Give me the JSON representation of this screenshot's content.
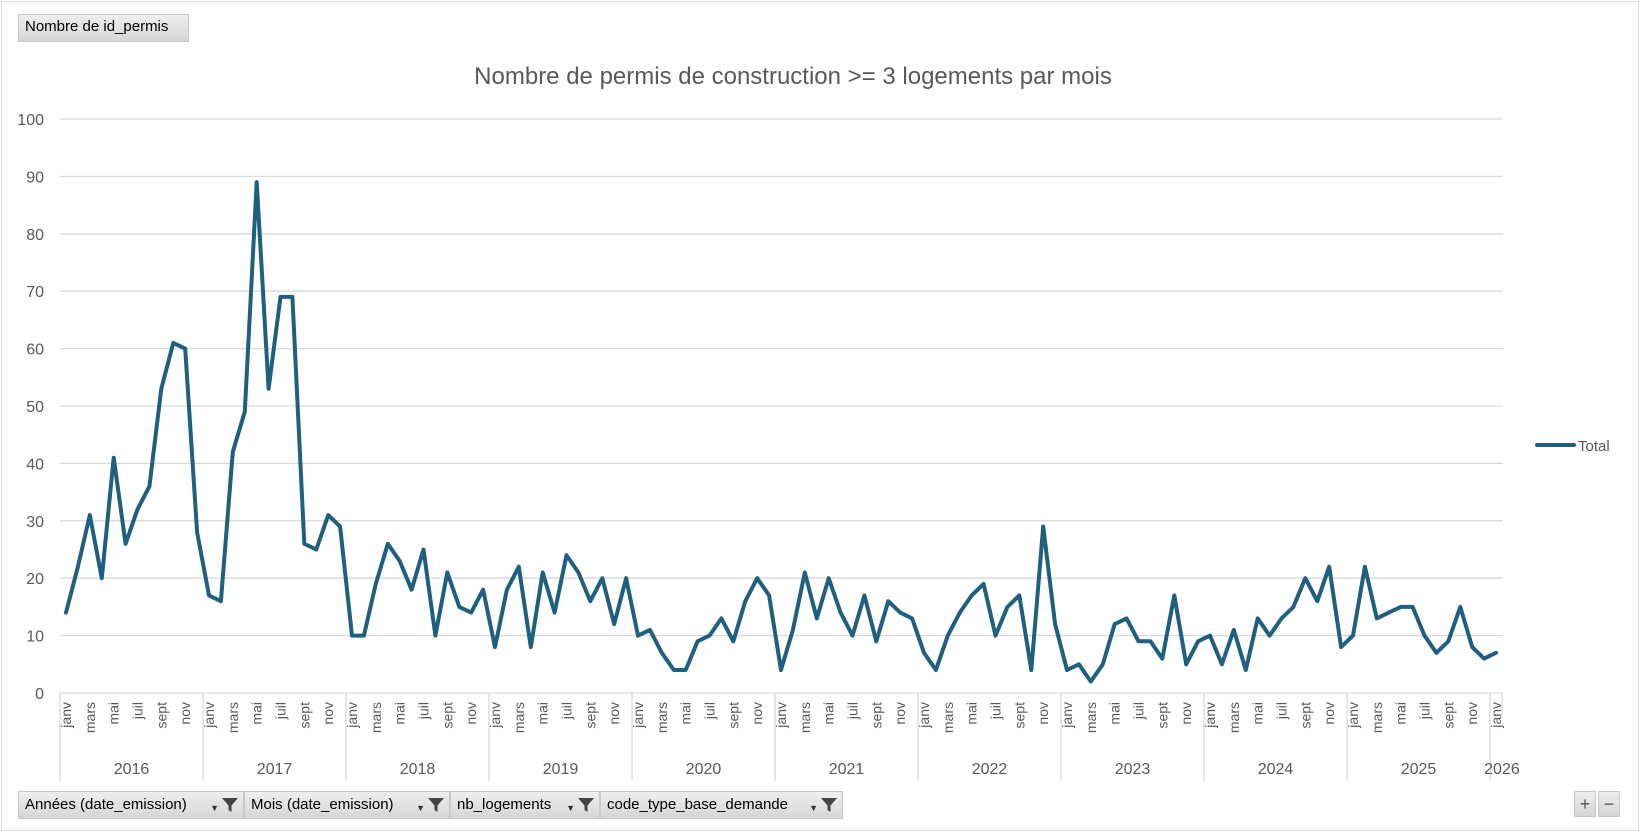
{
  "value_field": {
    "label": "Nombre de id_permis"
  },
  "axis_fields": [
    {
      "label": "Années (date_emission)"
    },
    {
      "label": "Mois (date_emission)"
    },
    {
      "label": "nb_logements"
    },
    {
      "label": "code_type_base_demande"
    }
  ],
  "zoom": {
    "plus": "+",
    "minus": "−"
  },
  "icons": {
    "filter": "filter-icon",
    "dropdown": "chevron-down-icon"
  },
  "colors": {
    "series": "#1f5f7f",
    "grid": "#d9d9d9",
    "text": "#595959"
  },
  "chart_data": {
    "type": "line",
    "title": "Nombre de permis de construction >= 3 logements par mois",
    "xlabel": "",
    "ylabel": "",
    "ylim": [
      0,
      100
    ],
    "yticks": [
      0,
      10,
      20,
      30,
      40,
      50,
      60,
      70,
      80,
      90,
      100
    ],
    "grid": true,
    "legend_position": "right",
    "month_tick_labels": [
      "janv",
      "mars",
      "mai",
      "juil",
      "sept",
      "nov"
    ],
    "years": [
      {
        "label": "2016",
        "months": 12
      },
      {
        "label": "2017",
        "months": 12
      },
      {
        "label": "2018",
        "months": 12
      },
      {
        "label": "2019",
        "months": 12
      },
      {
        "label": "2020",
        "months": 12
      },
      {
        "label": "2021",
        "months": 12
      },
      {
        "label": "2022",
        "months": 12
      },
      {
        "label": "2023",
        "months": 12
      },
      {
        "label": "2024",
        "months": 12
      },
      {
        "label": "2025",
        "months": 12
      },
      {
        "label": "2026",
        "months": 1
      }
    ],
    "series": [
      {
        "name": "Total",
        "values": [
          14,
          22,
          31,
          20,
          41,
          26,
          32,
          36,
          53,
          61,
          60,
          28,
          17,
          16,
          42,
          49,
          89,
          53,
          69,
          69,
          26,
          25,
          31,
          29,
          10,
          10,
          19,
          26,
          23,
          18,
          25,
          10,
          21,
          15,
          14,
          18,
          8,
          18,
          22,
          8,
          21,
          14,
          24,
          21,
          16,
          20,
          12,
          20,
          10,
          11,
          7,
          4,
          4,
          9,
          10,
          13,
          9,
          16,
          20,
          17,
          4,
          11,
          21,
          13,
          20,
          14,
          10,
          17,
          9,
          16,
          14,
          13,
          7,
          4,
          10,
          14,
          17,
          19,
          10,
          15,
          17,
          4,
          29,
          12,
          4,
          5,
          2,
          5,
          12,
          13,
          9,
          9,
          6,
          17,
          5,
          9,
          10,
          5,
          11,
          4,
          13,
          10,
          13,
          15,
          20,
          16,
          22,
          8,
          10,
          22,
          13,
          14,
          15,
          15,
          10,
          7,
          9,
          15,
          8,
          6,
          7
        ]
      }
    ]
  }
}
